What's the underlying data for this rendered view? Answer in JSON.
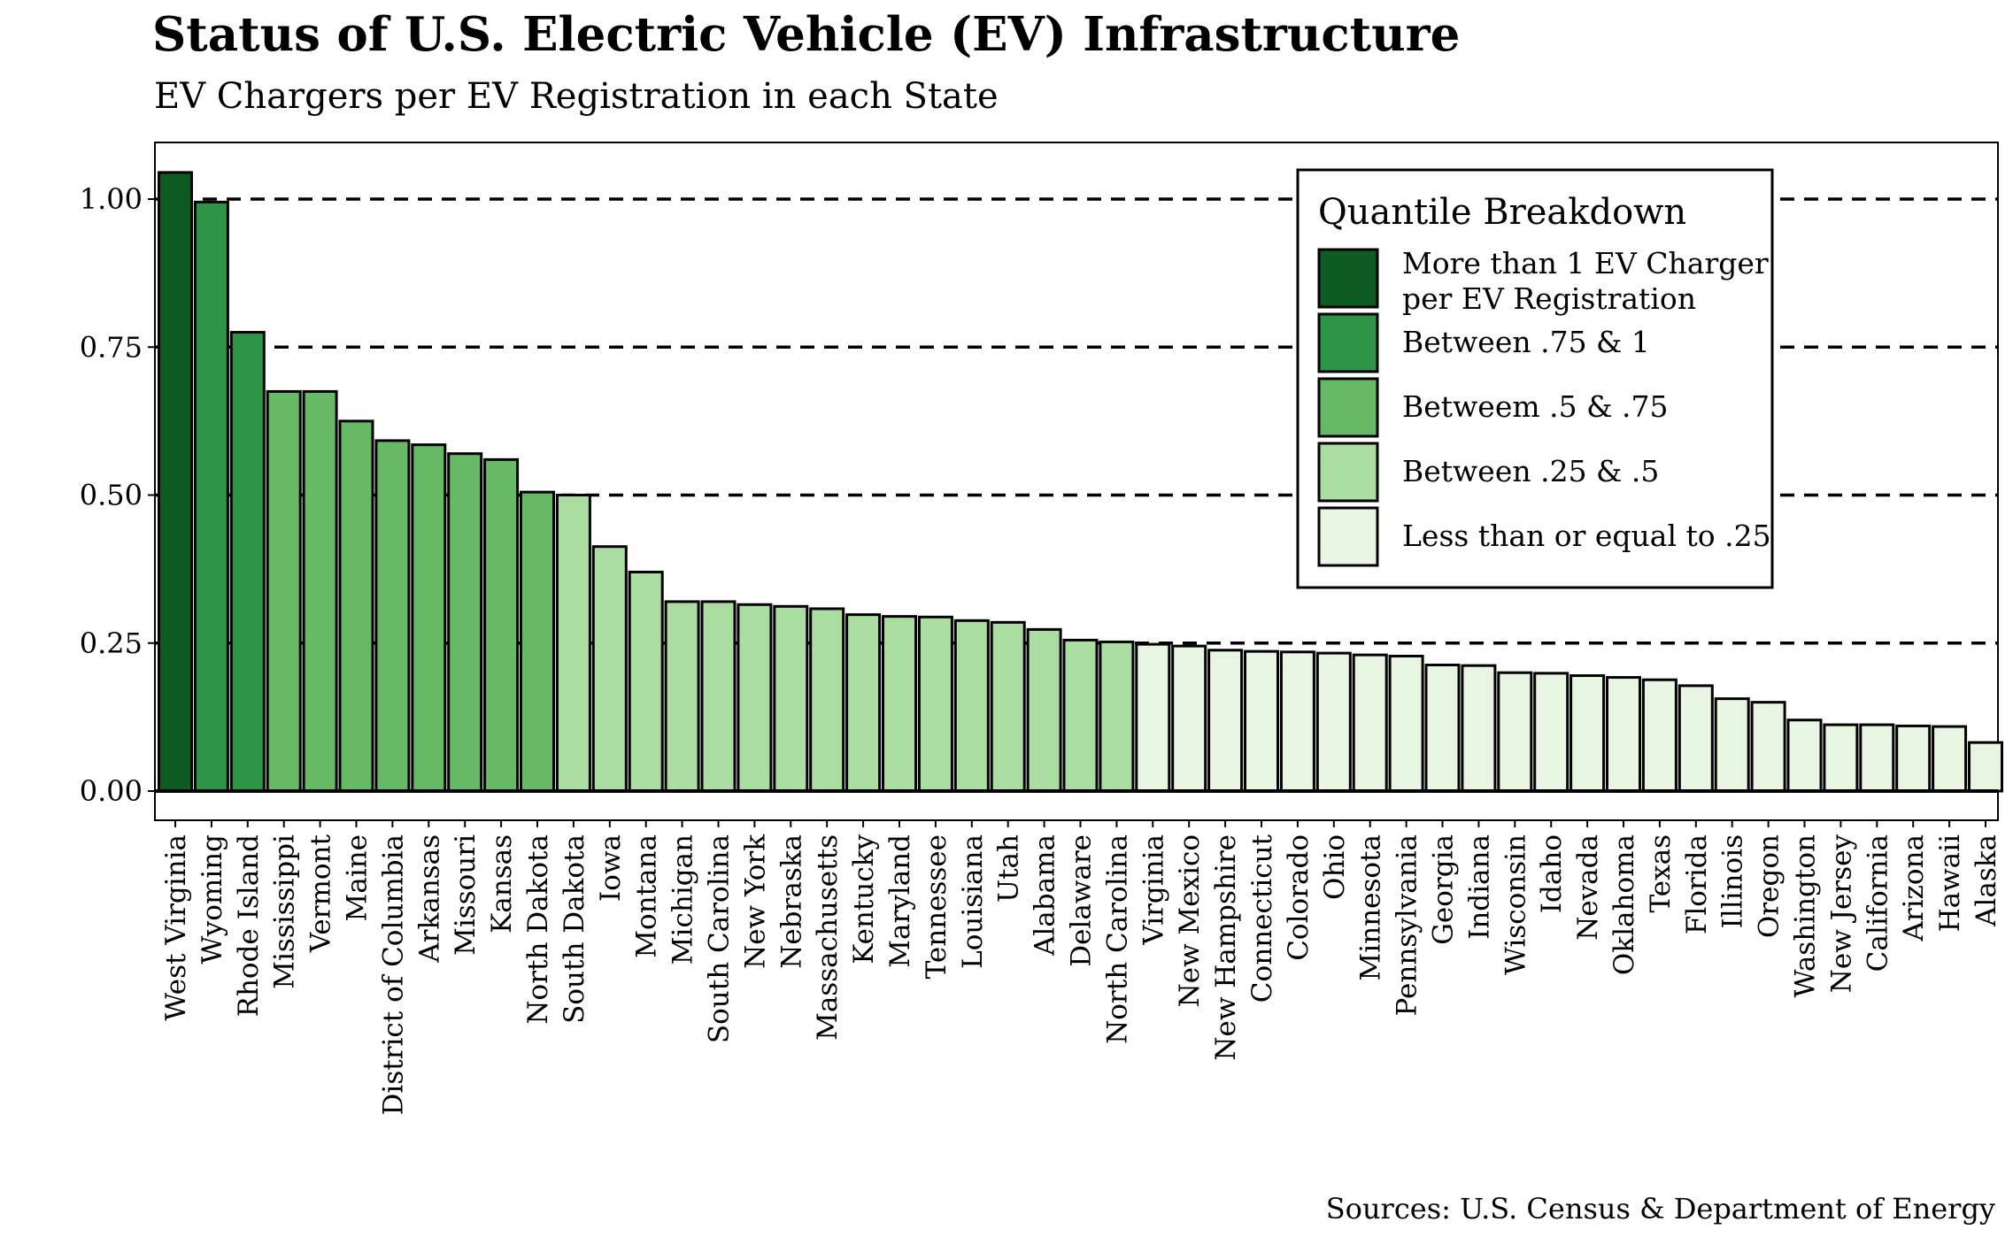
{
  "chart_data": {
    "type": "bar",
    "title": "Status of U.S. Electric Vehicle (EV) Infrastructure",
    "subtitle": "EV Chargers per EV Registration in each State",
    "caption": "Sources: U.S. Census & Department of Energy",
    "xlabel": "",
    "ylabel": "",
    "ylim": [
      -0.05,
      1.1
    ],
    "yticks": [
      0.0,
      0.25,
      0.5,
      0.75,
      1.0
    ],
    "ytick_labels": [
      "0.00",
      "0.25",
      "0.50",
      "0.75",
      "1.00"
    ],
    "grid": "horizontal dashed at 0.25, 0.50, 0.75, 1.00",
    "categories": [
      "West Virginia",
      "Wyoming",
      "Rhode Island",
      "Mississippi",
      "Vermont",
      "Maine",
      "District of Columbia",
      "Arkansas",
      "Missouri",
      "Kansas",
      "North Dakota",
      "South Dakota",
      "Iowa",
      "Montana",
      "Michigan",
      "South Carolina",
      "New York",
      "Nebraska",
      "Massachusetts",
      "Kentucky",
      "Maryland",
      "Tennessee",
      "Louisiana",
      "Utah",
      "Alabama",
      "Delaware",
      "North Carolina",
      "Virginia",
      "New Mexico",
      "New Hampshire",
      "Connecticut",
      "Colorado",
      "Ohio",
      "Minnesota",
      "Pennsylvania",
      "Georgia",
      "Indiana",
      "Wisconsin",
      "Idaho",
      "Nevada",
      "Oklahoma",
      "Texas",
      "Florida",
      "Illinois",
      "Oregon",
      "Washington",
      "New Jersey",
      "California",
      "Arizona",
      "Hawaii",
      "Alaska"
    ],
    "values": [
      1.045,
      0.995,
      0.775,
      0.675,
      0.675,
      0.625,
      0.592,
      0.585,
      0.57,
      0.56,
      0.505,
      0.5,
      0.413,
      0.37,
      0.32,
      0.32,
      0.315,
      0.312,
      0.308,
      0.298,
      0.295,
      0.294,
      0.288,
      0.285,
      0.273,
      0.255,
      0.252,
      0.248,
      0.245,
      0.238,
      0.236,
      0.235,
      0.233,
      0.23,
      0.228,
      0.213,
      0.212,
      0.2,
      0.199,
      0.195,
      0.192,
      0.188,
      0.178,
      0.156,
      0.15,
      0.12,
      0.112,
      0.112,
      0.11,
      0.109,
      0.082
    ],
    "groups": [
      0,
      1,
      1,
      2,
      2,
      2,
      2,
      2,
      2,
      2,
      2,
      3,
      3,
      3,
      3,
      3,
      3,
      3,
      3,
      3,
      3,
      3,
      3,
      3,
      3,
      3,
      3,
      4,
      4,
      4,
      4,
      4,
      4,
      4,
      4,
      4,
      4,
      4,
      4,
      4,
      4,
      4,
      4,
      4,
      4,
      4,
      4,
      4,
      4,
      4,
      4
    ],
    "legend": {
      "title": "Quantile Breakdown",
      "placement": "top-right",
      "entries": [
        {
          "label_lines": [
            "More than 1 EV Charger",
            "per EV Registration"
          ],
          "color": "#0d5a22"
        },
        {
          "label_lines": [
            "Between .75 & 1"
          ],
          "color": "#2d9447"
        },
        {
          "label_lines": [
            "Betweem .5 & .75"
          ],
          "color": "#67b966"
        },
        {
          "label_lines": [
            "Between .25 & .5"
          ],
          "color": "#abdca1"
        },
        {
          "label_lines": [
            "Less than or equal to .25"
          ],
          "color": "#e7f5e2"
        }
      ]
    }
  }
}
